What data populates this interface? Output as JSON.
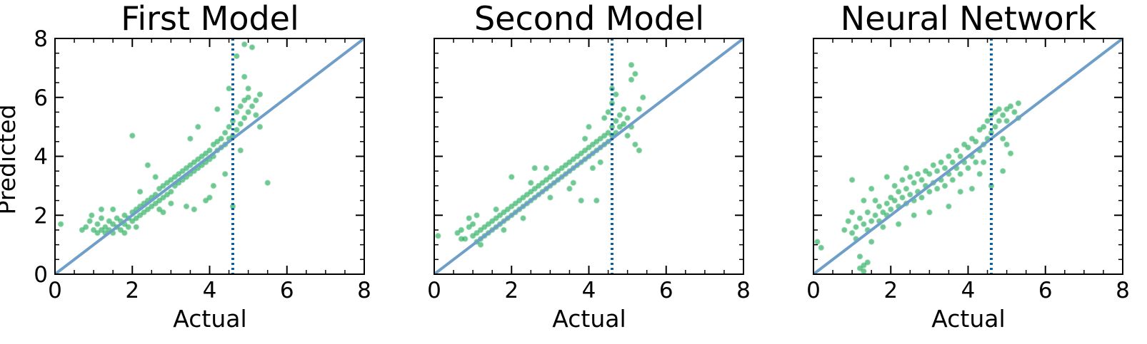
{
  "chart_data": [
    {
      "type": "scatter",
      "title": "First Model",
      "xlabel": "Actual",
      "ylabel": "Predicted",
      "xlim": [
        0,
        8
      ],
      "ylim": [
        0,
        8
      ],
      "xticks": [
        "0",
        "2",
        "4",
        "6",
        "8"
      ],
      "yticks": [
        "0",
        "2",
        "4",
        "6",
        "8"
      ],
      "show_yticklabels": true,
      "reference_line": {
        "x": [
          0,
          8
        ],
        "y": [
          0,
          8
        ]
      },
      "threshold_x": 4.6,
      "marker_color": "#00a040",
      "reference_line_color": "#6f9fc8",
      "threshold_color": "#1060a0",
      "points": [
        [
          0.15,
          1.7
        ],
        [
          0.7,
          1.5
        ],
        [
          0.8,
          1.6
        ],
        [
          0.9,
          1.8
        ],
        [
          1.0,
          1.5
        ],
        [
          1.1,
          1.7
        ],
        [
          1.1,
          1.4
        ],
        [
          1.2,
          1.5
        ],
        [
          1.2,
          1.9
        ],
        [
          1.3,
          1.4
        ],
        [
          1.3,
          1.6
        ],
        [
          1.4,
          1.5
        ],
        [
          1.4,
          1.8
        ],
        [
          1.5,
          1.4
        ],
        [
          1.5,
          1.7
        ],
        [
          1.6,
          1.6
        ],
        [
          1.6,
          1.9
        ],
        [
          1.7,
          1.5
        ],
        [
          1.7,
          1.8
        ],
        [
          1.8,
          1.7
        ],
        [
          1.8,
          2.0
        ],
        [
          1.9,
          1.6
        ],
        [
          1.9,
          1.9
        ],
        [
          2.0,
          1.8
        ],
        [
          2.0,
          2.1
        ],
        [
          2.1,
          1.9
        ],
        [
          2.1,
          2.2
        ],
        [
          2.2,
          2.0
        ],
        [
          2.2,
          2.3
        ],
        [
          2.3,
          2.1
        ],
        [
          2.3,
          2.4
        ],
        [
          2.4,
          2.2
        ],
        [
          2.4,
          2.5
        ],
        [
          2.5,
          2.3
        ],
        [
          2.5,
          2.6
        ],
        [
          2.6,
          2.4
        ],
        [
          2.6,
          2.7
        ],
        [
          2.7,
          2.5
        ],
        [
          2.7,
          2.9
        ],
        [
          2.8,
          2.6
        ],
        [
          2.8,
          3.0
        ],
        [
          2.9,
          2.7
        ],
        [
          2.9,
          3.1
        ],
        [
          3.0,
          2.8
        ],
        [
          3.0,
          3.2
        ],
        [
          3.1,
          3.0
        ],
        [
          3.1,
          3.3
        ],
        [
          3.2,
          3.1
        ],
        [
          3.2,
          3.4
        ],
        [
          3.3,
          3.2
        ],
        [
          3.3,
          3.5
        ],
        [
          3.4,
          3.3
        ],
        [
          3.4,
          3.6
        ],
        [
          3.5,
          3.4
        ],
        [
          3.5,
          3.7
        ],
        [
          3.6,
          3.5
        ],
        [
          3.6,
          3.8
        ],
        [
          3.7,
          3.6
        ],
        [
          3.7,
          3.9
        ],
        [
          3.8,
          3.7
        ],
        [
          3.8,
          4.0
        ],
        [
          3.9,
          3.8
        ],
        [
          3.9,
          4.1
        ],
        [
          4.0,
          3.9
        ],
        [
          4.0,
          4.2
        ],
        [
          4.1,
          4.0
        ],
        [
          4.1,
          4.4
        ],
        [
          4.2,
          4.2
        ],
        [
          4.2,
          4.5
        ],
        [
          4.3,
          4.3
        ],
        [
          4.3,
          4.6
        ],
        [
          4.4,
          4.4
        ],
        [
          4.4,
          4.8
        ],
        [
          4.5,
          4.6
        ],
        [
          4.5,
          5.0
        ],
        [
          4.6,
          4.7
        ],
        [
          4.6,
          5.2
        ],
        [
          4.7,
          4.9
        ],
        [
          4.7,
          5.5
        ],
        [
          4.8,
          5.1
        ],
        [
          4.8,
          5.7
        ],
        [
          4.9,
          5.3
        ],
        [
          4.9,
          5.9
        ],
        [
          5.0,
          5.5
        ],
        [
          5.0,
          6.0
        ],
        [
          5.1,
          5.7
        ],
        [
          5.2,
          5.4
        ],
        [
          5.3,
          5.0
        ],
        [
          5.3,
          6.1
        ],
        [
          5.5,
          3.1
        ],
        [
          4.6,
          2.3
        ],
        [
          4.0,
          2.6
        ],
        [
          3.4,
          2.3
        ],
        [
          2.7,
          2.2
        ],
        [
          2.8,
          2.1
        ],
        [
          2.0,
          4.7
        ],
        [
          2.4,
          3.7
        ],
        [
          4.9,
          7.8
        ],
        [
          5.1,
          7.7
        ],
        [
          4.7,
          7.4
        ],
        [
          4.1,
          3.0
        ],
        [
          3.9,
          2.5
        ],
        [
          3.6,
          2.2
        ],
        [
          3.0,
          2.4
        ],
        [
          4.4,
          3.4
        ],
        [
          4.5,
          6.3
        ],
        [
          4.2,
          5.6
        ],
        [
          3.7,
          5.0
        ],
        [
          3.5,
          4.6
        ],
        [
          2.6,
          3.3
        ],
        [
          2.2,
          2.8
        ],
        [
          1.5,
          2.2
        ],
        [
          1.2,
          2.2
        ],
        [
          0.95,
          2.0
        ],
        [
          1.8,
          1.4
        ],
        [
          2.1,
          1.6
        ],
        [
          4.8,
          4.2
        ],
        [
          5.2,
          5.9
        ],
        [
          4.9,
          6.7
        ],
        [
          5.0,
          6.3
        ]
      ]
    },
    {
      "type": "scatter",
      "title": "Second Model",
      "xlabel": "Actual",
      "ylabel": "",
      "xlim": [
        0,
        8
      ],
      "ylim": [
        0,
        8
      ],
      "xticks": [
        "0",
        "2",
        "4",
        "6",
        "8"
      ],
      "yticks": [
        "",
        "",
        "",
        "",
        ""
      ],
      "show_yticklabels": false,
      "reference_line": {
        "x": [
          0,
          8
        ],
        "y": [
          0,
          8
        ]
      },
      "threshold_x": 4.6,
      "marker_color": "#00a040",
      "reference_line_color": "#6f9fc8",
      "threshold_color": "#1060a0",
      "points": [
        [
          0.1,
          1.3
        ],
        [
          0.6,
          1.4
        ],
        [
          0.7,
          1.5
        ],
        [
          0.8,
          1.2
        ],
        [
          0.9,
          1.6
        ],
        [
          1.0,
          1.3
        ],
        [
          1.0,
          1.7
        ],
        [
          1.1,
          1.4
        ],
        [
          1.1,
          1.1
        ],
        [
          1.2,
          1.5
        ],
        [
          1.2,
          1.2
        ],
        [
          1.3,
          1.6
        ],
        [
          1.3,
          1.3
        ],
        [
          1.4,
          1.7
        ],
        [
          1.4,
          1.4
        ],
        [
          1.5,
          1.8
        ],
        [
          1.5,
          1.5
        ],
        [
          1.6,
          1.9
        ],
        [
          1.6,
          1.6
        ],
        [
          1.7,
          2.0
        ],
        [
          1.7,
          1.7
        ],
        [
          1.8,
          2.1
        ],
        [
          1.8,
          1.8
        ],
        [
          1.9,
          2.2
        ],
        [
          1.9,
          1.9
        ],
        [
          2.0,
          2.3
        ],
        [
          2.0,
          2.0
        ],
        [
          2.1,
          2.4
        ],
        [
          2.1,
          2.1
        ],
        [
          2.2,
          2.5
        ],
        [
          2.2,
          2.2
        ],
        [
          2.3,
          2.6
        ],
        [
          2.3,
          2.3
        ],
        [
          2.4,
          2.7
        ],
        [
          2.4,
          2.4
        ],
        [
          2.5,
          2.8
        ],
        [
          2.5,
          2.5
        ],
        [
          2.6,
          2.9
        ],
        [
          2.6,
          2.6
        ],
        [
          2.7,
          3.0
        ],
        [
          2.7,
          2.7
        ],
        [
          2.8,
          3.1
        ],
        [
          2.8,
          2.8
        ],
        [
          2.9,
          3.2
        ],
        [
          2.9,
          2.9
        ],
        [
          3.0,
          3.3
        ],
        [
          3.0,
          3.0
        ],
        [
          3.1,
          3.4
        ],
        [
          3.1,
          3.1
        ],
        [
          3.2,
          3.5
        ],
        [
          3.2,
          3.2
        ],
        [
          3.3,
          3.6
        ],
        [
          3.3,
          3.3
        ],
        [
          3.4,
          3.7
        ],
        [
          3.4,
          3.4
        ],
        [
          3.5,
          3.8
        ],
        [
          3.5,
          3.5
        ],
        [
          3.6,
          3.9
        ],
        [
          3.6,
          3.6
        ],
        [
          3.7,
          4.0
        ],
        [
          3.7,
          3.7
        ],
        [
          3.8,
          4.1
        ],
        [
          3.8,
          3.8
        ],
        [
          3.9,
          4.2
        ],
        [
          3.9,
          3.9
        ],
        [
          4.0,
          4.3
        ],
        [
          4.0,
          4.0
        ],
        [
          4.1,
          4.4
        ],
        [
          4.1,
          4.1
        ],
        [
          4.2,
          4.5
        ],
        [
          4.2,
          4.2
        ],
        [
          4.3,
          4.6
        ],
        [
          4.3,
          4.3
        ],
        [
          4.4,
          4.7
        ],
        [
          4.4,
          4.4
        ],
        [
          4.5,
          4.8
        ],
        [
          4.5,
          4.5
        ],
        [
          4.6,
          5.0
        ],
        [
          4.6,
          4.7
        ],
        [
          4.7,
          5.2
        ],
        [
          4.7,
          4.8
        ],
        [
          4.8,
          5.4
        ],
        [
          4.8,
          5.0
        ],
        [
          4.9,
          5.6
        ],
        [
          4.9,
          5.1
        ],
        [
          5.0,
          5.3
        ],
        [
          5.1,
          5.0
        ],
        [
          5.2,
          4.4
        ],
        [
          5.3,
          4.2
        ],
        [
          5.4,
          6.0
        ],
        [
          5.1,
          7.1
        ],
        [
          5.2,
          6.8
        ],
        [
          5.1,
          6.6
        ],
        [
          4.6,
          6.3
        ],
        [
          4.7,
          6.1
        ],
        [
          4.6,
          5.8
        ],
        [
          5.3,
          5.6
        ],
        [
          2.0,
          3.3
        ],
        [
          2.6,
          3.6
        ],
        [
          1.6,
          2.2
        ],
        [
          1.2,
          1.0
        ],
        [
          3.8,
          2.5
        ],
        [
          4.2,
          2.5
        ],
        [
          3.5,
          2.9
        ],
        [
          3.0,
          2.6
        ],
        [
          3.6,
          3.1
        ],
        [
          4.1,
          3.6
        ],
        [
          4.3,
          3.8
        ],
        [
          2.3,
          1.9
        ],
        [
          1.8,
          1.5
        ],
        [
          0.9,
          1.9
        ],
        [
          1.1,
          2.0
        ],
        [
          0.7,
          1.2
        ],
        [
          4.0,
          5.0
        ],
        [
          4.4,
          5.3
        ],
        [
          4.5,
          5.5
        ],
        [
          3.9,
          4.6
        ],
        [
          2.9,
          3.6
        ],
        [
          2.5,
          3.1
        ],
        [
          5.0,
          4.7
        ]
      ]
    },
    {
      "type": "scatter",
      "title": "Neural Network",
      "xlabel": "Actual",
      "ylabel": "",
      "xlim": [
        0,
        8
      ],
      "ylim": [
        0,
        8
      ],
      "xticks": [
        "0",
        "2",
        "4",
        "6",
        "8"
      ],
      "yticks": [
        "",
        "",
        "",
        "",
        ""
      ],
      "show_yticklabels": false,
      "reference_line": {
        "x": [
          0,
          8
        ],
        "y": [
          0,
          8
        ]
      },
      "threshold_x": 4.6,
      "marker_color": "#00a040",
      "reference_line_color": "#6f9fc8",
      "threshold_color": "#1060a0",
      "points": [
        [
          0.1,
          1.1
        ],
        [
          0.2,
          0.9
        ],
        [
          0.8,
          1.5
        ],
        [
          0.9,
          1.8
        ],
        [
          1.0,
          1.4
        ],
        [
          1.0,
          2.1
        ],
        [
          1.1,
          1.6
        ],
        [
          1.1,
          1.2
        ],
        [
          1.2,
          1.9
        ],
        [
          1.2,
          0.6
        ],
        [
          1.3,
          1.7
        ],
        [
          1.3,
          0.3
        ],
        [
          1.3,
          2.5
        ],
        [
          1.4,
          1.5
        ],
        [
          1.4,
          2.1
        ],
        [
          1.5,
          1.8
        ],
        [
          1.5,
          1.1
        ],
        [
          1.6,
          2.0
        ],
        [
          1.6,
          2.5
        ],
        [
          1.7,
          1.8
        ],
        [
          1.7,
          2.3
        ],
        [
          1.8,
          2.1
        ],
        [
          1.8,
          1.6
        ],
        [
          1.9,
          2.4
        ],
        [
          1.9,
          2.0
        ],
        [
          2.0,
          2.6
        ],
        [
          2.0,
          2.2
        ],
        [
          2.1,
          2.5
        ],
        [
          2.1,
          3.0
        ],
        [
          2.2,
          2.3
        ],
        [
          2.2,
          2.8
        ],
        [
          2.3,
          2.6
        ],
        [
          2.3,
          3.2
        ],
        [
          2.4,
          2.4
        ],
        [
          2.4,
          2.9
        ],
        [
          2.5,
          2.7
        ],
        [
          2.5,
          3.3
        ],
        [
          2.6,
          2.5
        ],
        [
          2.6,
          3.1
        ],
        [
          2.7,
          2.8
        ],
        [
          2.7,
          3.4
        ],
        [
          2.8,
          2.6
        ],
        [
          2.8,
          3.2
        ],
        [
          2.9,
          3.0
        ],
        [
          2.9,
          3.5
        ],
        [
          3.0,
          2.8
        ],
        [
          3.0,
          3.4
        ],
        [
          3.1,
          3.1
        ],
        [
          3.1,
          3.7
        ],
        [
          3.2,
          2.9
        ],
        [
          3.2,
          3.5
        ],
        [
          3.3,
          3.2
        ],
        [
          3.3,
          3.8
        ],
        [
          3.4,
          3.0
        ],
        [
          3.4,
          3.6
        ],
        [
          3.5,
          3.4
        ],
        [
          3.5,
          4.0
        ],
        [
          3.6,
          3.2
        ],
        [
          3.6,
          3.8
        ],
        [
          3.7,
          3.6
        ],
        [
          3.7,
          4.2
        ],
        [
          3.8,
          3.4
        ],
        [
          3.8,
          4.0
        ],
        [
          3.9,
          3.8
        ],
        [
          3.9,
          4.4
        ],
        [
          4.0,
          3.6
        ],
        [
          4.0,
          4.3
        ],
        [
          4.1,
          4.0
        ],
        [
          4.1,
          4.6
        ],
        [
          4.2,
          3.8
        ],
        [
          4.2,
          4.5
        ],
        [
          4.3,
          4.2
        ],
        [
          4.3,
          4.9
        ],
        [
          4.4,
          4.4
        ],
        [
          4.4,
          5.0
        ],
        [
          4.5,
          4.6
        ],
        [
          4.5,
          5.2
        ],
        [
          4.6,
          4.8
        ],
        [
          4.6,
          5.4
        ],
        [
          4.7,
          5.0
        ],
        [
          4.7,
          5.5
        ],
        [
          4.8,
          5.2
        ],
        [
          4.8,
          5.6
        ],
        [
          4.9,
          5.4
        ],
        [
          5.0,
          5.6
        ],
        [
          5.0,
          5.2
        ],
        [
          5.1,
          5.7
        ],
        [
          5.2,
          5.5
        ],
        [
          5.3,
          5.8
        ],
        [
          5.3,
          5.3
        ],
        [
          1.0,
          3.2
        ],
        [
          1.5,
          2.9
        ],
        [
          1.9,
          3.3
        ],
        [
          2.4,
          3.6
        ],
        [
          1.3,
          0.1
        ],
        [
          1.4,
          0.4
        ],
        [
          1.2,
          0.2
        ],
        [
          3.5,
          2.3
        ],
        [
          3.0,
          2.1
        ],
        [
          4.1,
          2.9
        ],
        [
          4.6,
          3.0
        ],
        [
          4.9,
          3.5
        ],
        [
          4.4,
          3.8
        ],
        [
          3.8,
          2.8
        ],
        [
          4.3,
          3.4
        ],
        [
          4.9,
          4.6
        ],
        [
          5.1,
          4.1
        ],
        [
          5.0,
          4.4
        ],
        [
          2.6,
          2.0
        ],
        [
          2.2,
          1.7
        ]
      ]
    }
  ]
}
